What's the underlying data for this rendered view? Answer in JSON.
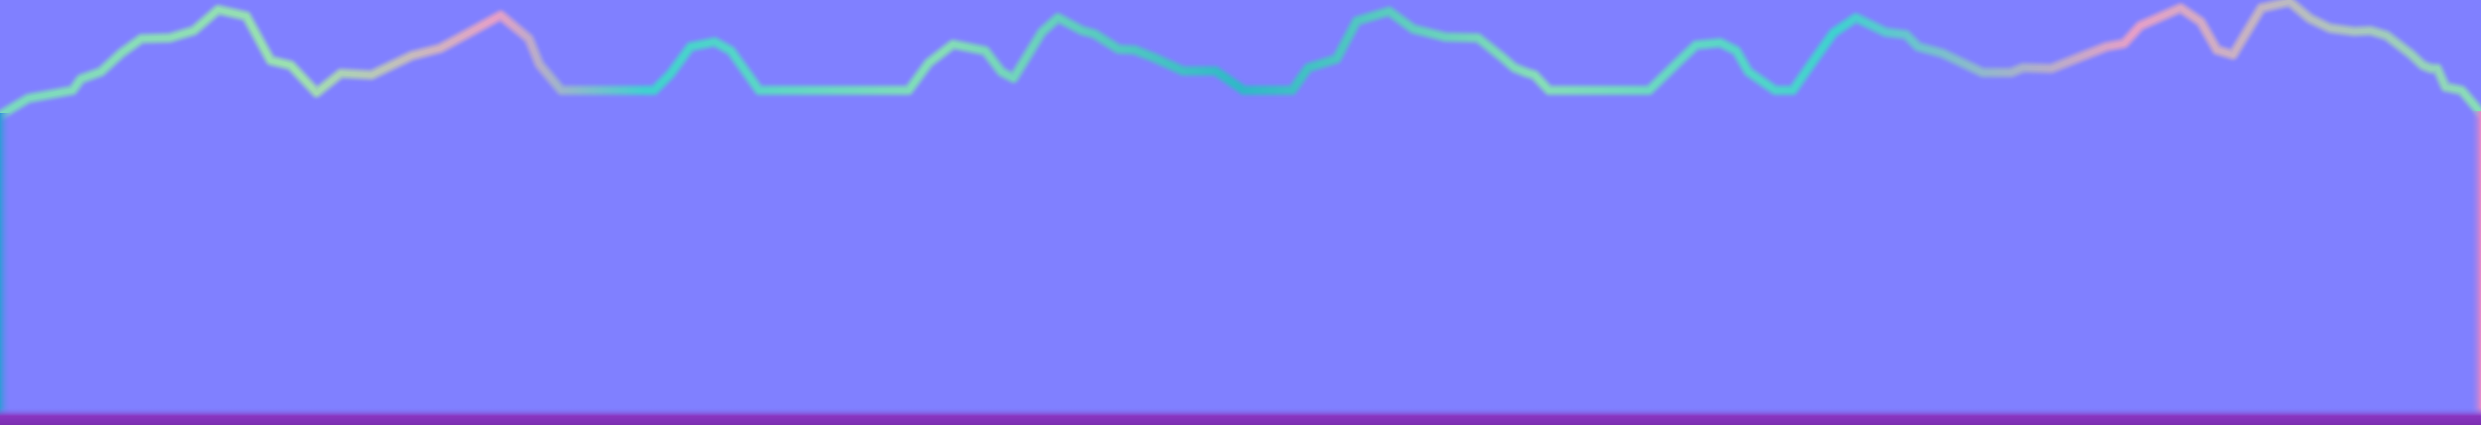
{
  "colors": {
    "background": "#8080ff",
    "edge_light": "#7fdcb8",
    "edge_cyan": "#3fd0d0",
    "edge_pink": "#e59ec8",
    "edge_teal": "#2fa8c8",
    "left_edge": "#2f9bd6",
    "right_edge": "#e887c5",
    "bottom_edge": "#8a2fb8"
  }
}
